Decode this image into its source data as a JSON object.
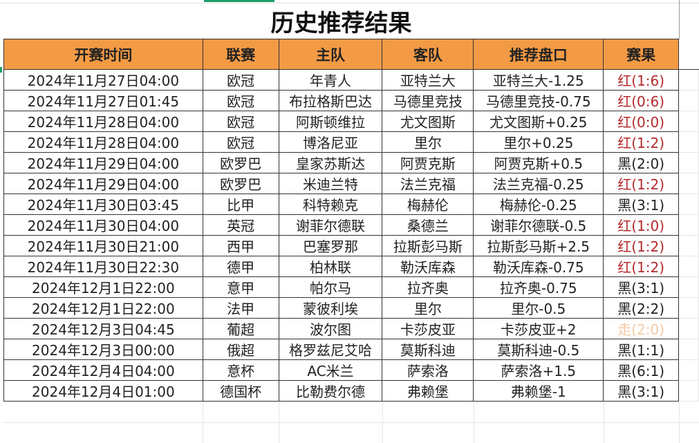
{
  "title": "历史推荐结果",
  "headers": [
    "开赛时间",
    "联赛",
    "主队",
    "客队",
    "推荐盘口",
    "赛果"
  ],
  "colors": {
    "header_bg": "#f39a45",
    "red": "#b4282a",
    "black": "#222222",
    "push": "#f5c9a0"
  },
  "rows": [
    {
      "time": "2024年11月27日04:00",
      "league": "欧冠",
      "home": "年青人",
      "away": "亚特兰大",
      "pick": "亚特兰大-1.25",
      "result": "红(1:6)",
      "status": "red"
    },
    {
      "time": "2024年11月27日01:45",
      "league": "欧冠",
      "home": "布拉格斯巴达",
      "away": "马德里竞技",
      "pick": "马德里竞技-0.75",
      "result": "红(0:6)",
      "status": "red"
    },
    {
      "time": "2024年11月28日04:00",
      "league": "欧冠",
      "home": "阿斯顿维拉",
      "away": "尤文图斯",
      "pick": "尤文图斯+0.25",
      "result": "红(0:0)",
      "status": "red"
    },
    {
      "time": "2024年11月28日04:00",
      "league": "欧冠",
      "home": "博洛尼亚",
      "away": "里尔",
      "pick": "里尔+0.25",
      "result": "红(1:2)",
      "status": "red"
    },
    {
      "time": "2024年11月29日04:00",
      "league": "欧罗巴",
      "home": "皇家苏斯达",
      "away": "阿贾克斯",
      "pick": "阿贾克斯+0.5",
      "result": "黑(2:0)",
      "status": "black"
    },
    {
      "time": "2024年11月29日04:00",
      "league": "欧罗巴",
      "home": "米迪兰特",
      "away": "法兰克福",
      "pick": "法兰克福-0.25",
      "result": "红(1:2)",
      "status": "red"
    },
    {
      "time": "2024年11月30日03:45",
      "league": "比甲",
      "home": "科特赖克",
      "away": "梅赫伦",
      "pick": "梅赫伦-0.25",
      "result": "黑(3:1)",
      "status": "black"
    },
    {
      "time": "2024年11月30日04:00",
      "league": "英冠",
      "home": "谢菲尔德联",
      "away": "桑德兰",
      "pick": "谢菲尔德联-0.5",
      "result": "红(1:0)",
      "status": "red"
    },
    {
      "time": "2024年11月30日21:00",
      "league": "西甲",
      "home": "巴塞罗那",
      "away": "拉斯彭马斯",
      "pick": "拉斯彭马斯+2.5",
      "result": "红(1:2)",
      "status": "red"
    },
    {
      "time": "2024年11月30日22:30",
      "league": "德甲",
      "home": "柏林联",
      "away": "勒沃库森",
      "pick": "勒沃库森-0.75",
      "result": "红(1:2)",
      "status": "red"
    },
    {
      "time": "2024年12月1日22:00",
      "league": "意甲",
      "home": "帕尔马",
      "away": "拉齐奥",
      "pick": "拉齐奥-0.75",
      "result": "黑(3:1)",
      "status": "black"
    },
    {
      "time": "2024年12月1日22:00",
      "league": "法甲",
      "home": "蒙彼利埃",
      "away": "里尔",
      "pick": "里尔-0.5",
      "result": "黑(2:2)",
      "status": "black"
    },
    {
      "time": "2024年12月3日04:45",
      "league": "葡超",
      "home": "波尔图",
      "away": "卡莎皮亚",
      "pick": "卡莎皮亚+2",
      "result": "走(2:0)",
      "status": "push"
    },
    {
      "time": "2024年12月3日00:00",
      "league": "俄超",
      "home": "格罗兹尼艾哈",
      "away": "莫斯科迪",
      "pick": "莫斯科迪-0.5",
      "result": "黑(1:1)",
      "status": "black"
    },
    {
      "time": "2024年12月4日04:00",
      "league": "意杯",
      "home": "AC米兰",
      "away": "萨索洛",
      "pick": "萨索洛+1.5",
      "result": "黑(6:1)",
      "status": "black"
    },
    {
      "time": "2024年12月4日01:00",
      "league": "德国杯",
      "home": "比勒费尔德",
      "away": "弗赖堡",
      "pick": "弗赖堡-1",
      "result": "黑(3:1)",
      "status": "black"
    }
  ]
}
